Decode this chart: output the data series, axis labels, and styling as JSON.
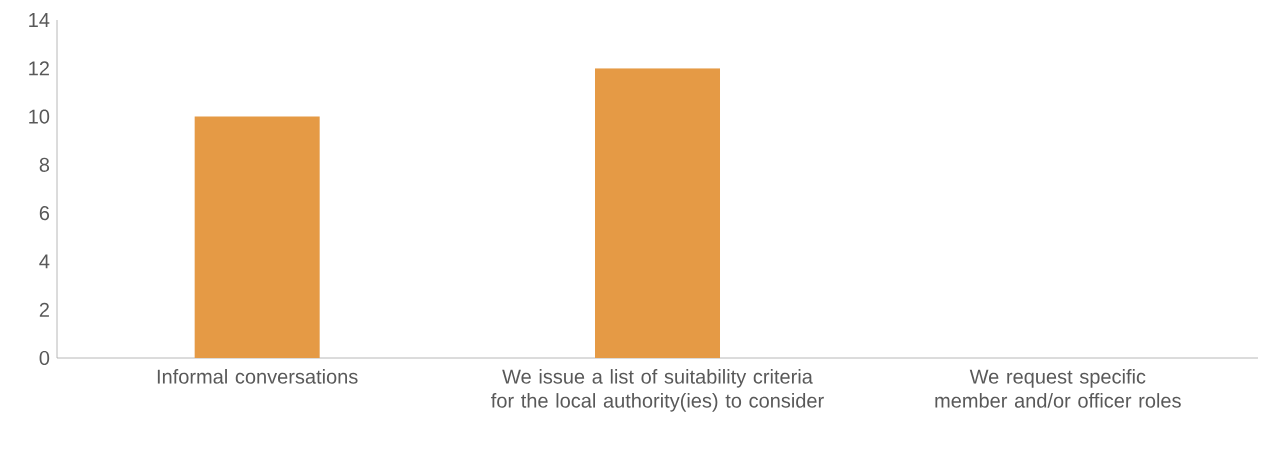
{
  "chart_data": {
    "type": "bar",
    "categories": [
      "Informal conversations",
      "We issue a list of suitability criteria for the local authority(ies) to consider",
      "We request specific member and/or officer roles"
    ],
    "values": [
      10,
      12,
      0
    ],
    "color": "#e59a45",
    "ylim": [
      0,
      14
    ],
    "yticks": [
      0,
      2,
      4,
      6,
      8,
      10,
      12,
      14
    ],
    "grid": false
  }
}
